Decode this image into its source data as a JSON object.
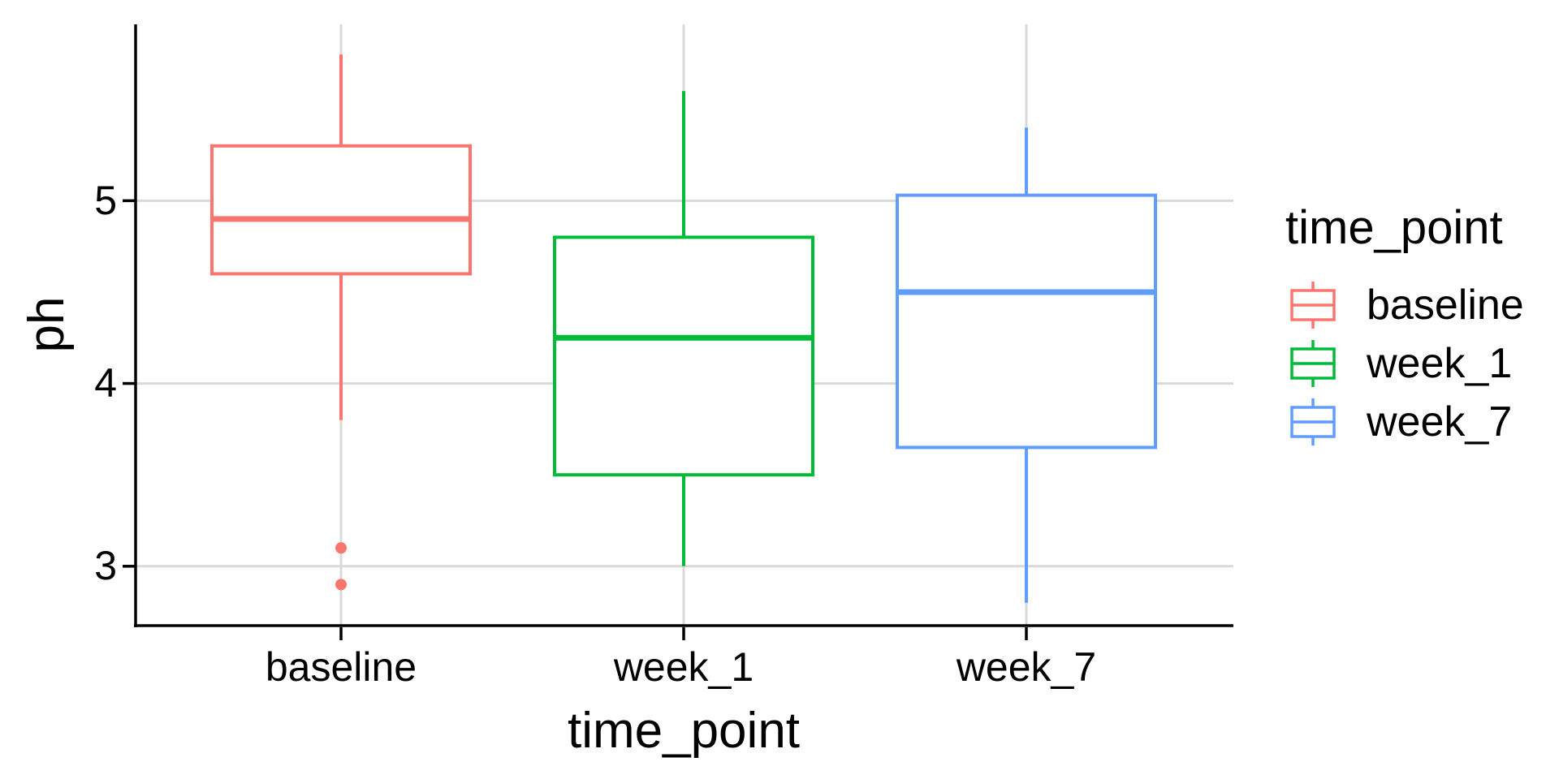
{
  "chart_data": {
    "type": "boxplot",
    "title": "",
    "xlabel": "time_point",
    "ylabel": "ph",
    "categories": [
      "baseline",
      "week_1",
      "week_7"
    ],
    "ytick_labels": [
      "5",
      "4",
      "3"
    ],
    "ytick_values": [
      5,
      4,
      3
    ],
    "ylim": [
      2.675,
      5.965
    ],
    "grid": true,
    "panel_background": "#FFFFFF",
    "gridline_color": "#D9D9D9",
    "axis_color": "#000000",
    "series": [
      {
        "name": "baseline",
        "color": "#F8766D",
        "min": 3.8,
        "q1": 4.6,
        "median": 4.9,
        "q3": 5.3,
        "max": 5.8,
        "outliers": [
          3.1,
          2.9
        ]
      },
      {
        "name": "week_1",
        "color": "#00BA38",
        "min": 3.0,
        "q1": 3.5,
        "median": 4.25,
        "q3": 4.8,
        "max": 5.6,
        "outliers": []
      },
      {
        "name": "week_7",
        "color": "#619CFF",
        "min": 2.8,
        "q1": 3.65,
        "median": 4.5,
        "q3": 5.03,
        "max": 5.4,
        "outliers": []
      }
    ],
    "legend": {
      "title": "time_point",
      "position": "right",
      "entries": [
        {
          "label": "baseline",
          "color": "#F8766D"
        },
        {
          "label": "week_1",
          "color": "#00BA38"
        },
        {
          "label": "week_7",
          "color": "#619CFF"
        }
      ]
    }
  }
}
